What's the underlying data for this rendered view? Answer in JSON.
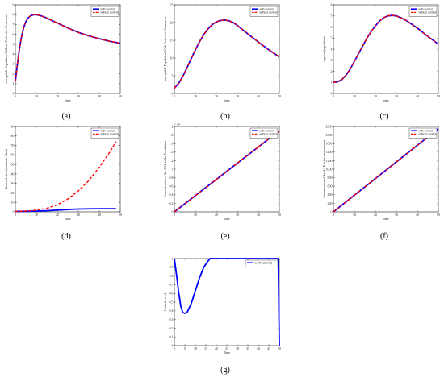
{
  "colors": {
    "with_control": "#0000ff",
    "without_control": "#ff0000",
    "axis": "#222222"
  },
  "chart_data": [
    {
      "id": "a",
      "caption": "(a)",
      "type": "line",
      "xlabel": "time",
      "ylabel": "susceptible Population Without Protective Awareness",
      "xlim": [
        0,
        50
      ],
      "ylim": [
        0,
        9
      ],
      "xticks": [
        0,
        10,
        20,
        30,
        40,
        50
      ],
      "yticks": [
        0,
        1,
        2,
        3,
        4,
        5,
        6,
        7,
        8,
        9
      ],
      "legend": "top-right",
      "x": [
        0,
        1,
        2,
        3,
        4,
        5,
        6,
        7,
        8,
        9,
        10,
        12,
        14,
        16,
        18,
        20,
        25,
        30,
        35,
        40,
        45,
        50
      ],
      "series": [
        {
          "name": "with control",
          "style": "solid",
          "values": [
            1.2,
            3.0,
            4.6,
            5.8,
            6.7,
            7.3,
            7.65,
            7.85,
            7.95,
            8.0,
            8.0,
            7.9,
            7.75,
            7.55,
            7.35,
            7.15,
            6.65,
            6.2,
            5.85,
            5.55,
            5.3,
            5.1
          ]
        },
        {
          "name": "without control",
          "style": "dashed",
          "values": [
            1.2,
            3.0,
            4.6,
            5.8,
            6.7,
            7.3,
            7.65,
            7.85,
            7.95,
            8.0,
            8.0,
            7.9,
            7.75,
            7.55,
            7.35,
            7.15,
            6.65,
            6.2,
            5.85,
            5.55,
            5.3,
            5.1
          ]
        }
      ]
    },
    {
      "id": "b",
      "caption": "(b)",
      "type": "line",
      "xlabel": "time",
      "ylabel": "susceptible Population With Protective Awareness",
      "xlim": [
        0,
        50
      ],
      "ylim": [
        0,
        25
      ],
      "xticks": [
        0,
        10,
        20,
        30,
        40,
        50
      ],
      "yticks": [
        0,
        5,
        10,
        15,
        20,
        25
      ],
      "legend": "top-right",
      "x": [
        0,
        2,
        4,
        6,
        8,
        10,
        12,
        14,
        16,
        18,
        20,
        22,
        24,
        26,
        28,
        30,
        35,
        40,
        45,
        50
      ],
      "series": [
        {
          "name": "with control",
          "style": "solid",
          "values": [
            1.5,
            2.8,
            4.8,
            7.2,
            9.8,
            12.3,
            14.6,
            16.6,
            18.2,
            19.4,
            20.2,
            20.6,
            20.7,
            20.5,
            20.0,
            19.2,
            16.8,
            14.5,
            12.3,
            10.3
          ]
        },
        {
          "name": "without control",
          "style": "dashed",
          "values": [
            1.5,
            2.8,
            4.8,
            7.2,
            9.8,
            12.3,
            14.6,
            16.6,
            18.2,
            19.4,
            20.2,
            20.6,
            20.7,
            20.5,
            20.0,
            19.2,
            16.8,
            14.5,
            12.3,
            10.3
          ]
        }
      ]
    },
    {
      "id": "c",
      "caption": "(c)",
      "type": "line",
      "xlabel": "time",
      "ylabel": "exposed population",
      "xlim": [
        0,
        50
      ],
      "ylim": [
        0,
        8
      ],
      "xticks": [
        0,
        10,
        20,
        30,
        40,
        50
      ],
      "yticks": [
        0,
        1,
        2,
        3,
        4,
        5,
        6,
        7,
        8
      ],
      "legend": "top-right",
      "x": [
        0,
        2,
        4,
        6,
        8,
        10,
        12,
        14,
        16,
        18,
        20,
        22,
        24,
        26,
        28,
        30,
        32,
        35,
        40,
        45,
        50
      ],
      "series": [
        {
          "name": "with control",
          "style": "solid",
          "values": [
            1.0,
            1.05,
            1.25,
            1.65,
            2.2,
            2.9,
            3.6,
            4.3,
            5.0,
            5.6,
            6.1,
            6.55,
            6.85,
            7.0,
            7.05,
            7.0,
            6.85,
            6.55,
            5.9,
            5.15,
            4.45
          ]
        },
        {
          "name": "without control",
          "style": "dashed",
          "values": [
            1.0,
            1.05,
            1.25,
            1.65,
            2.2,
            2.9,
            3.6,
            4.3,
            5.0,
            5.6,
            6.1,
            6.55,
            6.85,
            7.0,
            7.05,
            7.0,
            6.85,
            6.55,
            5.9,
            5.15,
            4.45
          ]
        }
      ]
    },
    {
      "id": "d",
      "caption": "(d)",
      "type": "line",
      "xlabel": "time",
      "ylabel": "diseased class (antibiotic class)",
      "xlim": [
        0,
        50
      ],
      "ylim": [
        0,
        90
      ],
      "xticks": [
        0,
        10,
        20,
        30,
        40,
        50
      ],
      "yticks": [
        0,
        10,
        20,
        30,
        40,
        50,
        60,
        70,
        80,
        90
      ],
      "legend": "top-right",
      "x": [
        0,
        5,
        10,
        15,
        20,
        25,
        30,
        35,
        40,
        45,
        48
      ],
      "series": [
        {
          "name": "with control",
          "style": "solid",
          "values": [
            0.5,
            0.6,
            0.8,
            1.2,
            1.8,
            2.5,
            3.0,
            3.2,
            3.3,
            3.3,
            3.3
          ]
        },
        {
          "name": "without control",
          "style": "dashed",
          "values": [
            0.5,
            0.8,
            1.8,
            3.8,
            7.5,
            13.5,
            22.0,
            33.0,
            47.0,
            63.0,
            74.0
          ]
        }
      ]
    },
    {
      "id": "e",
      "caption": "(e)",
      "type": "line",
      "xlabel": "time",
      "ylabel": "Concentration of the AAP in the Population",
      "xlim": [
        0,
        50
      ],
      "ylim": [
        0,
        2
      ],
      "yexponent": "× 10⁴",
      "xticks": [
        0,
        10,
        20,
        30,
        40,
        50
      ],
      "yticks": [
        0,
        0.2,
        0.4,
        0.6,
        0.8,
        1,
        1.2,
        1.4,
        1.6,
        1.8,
        2
      ],
      "legend": "top-right",
      "x": [
        0,
        50
      ],
      "series": [
        {
          "name": "with control",
          "style": "solid",
          "values": [
            0,
            1.9
          ]
        },
        {
          "name": "without control",
          "style": "dashed",
          "values": [
            0,
            1.9
          ]
        }
      ]
    },
    {
      "id": "f",
      "caption": "(f)",
      "type": "line",
      "xlabel": "time",
      "ylabel": "concentration of the AAP in the environment",
      "xlim": [
        0,
        50
      ],
      "ylim": [
        0,
        2000
      ],
      "xticks": [
        0,
        10,
        20,
        30,
        40,
        50
      ],
      "yticks": [
        0,
        200,
        400,
        600,
        800,
        1000,
        1200,
        1400,
        1600,
        1800,
        2000
      ],
      "legend": "top-right",
      "x": [
        0,
        50
      ],
      "series": [
        {
          "name": "with control",
          "style": "solid",
          "values": [
            0,
            1950
          ]
        },
        {
          "name": "without control",
          "style": "dashed",
          "values": [
            0,
            1950
          ]
        }
      ]
    },
    {
      "id": "g",
      "caption": "(g)",
      "type": "line",
      "xlabel": "Time",
      "ylabel": "Control Level",
      "xlim": [
        0,
        50
      ],
      "ylim": [
        0,
        1
      ],
      "xticks": [
        0,
        5,
        10,
        15,
        20,
        25,
        30,
        35,
        40,
        45,
        50
      ],
      "yticks": [
        0,
        0.1,
        0.2,
        0.3,
        0.4,
        0.5,
        0.6,
        0.7,
        0.8,
        0.9,
        1
      ],
      "legend": "top-right",
      "x": [
        0,
        1,
        2,
        3,
        4,
        5,
        6,
        8,
        10,
        12,
        14,
        16,
        17,
        20,
        30,
        40,
        49,
        49.5,
        50
      ],
      "series": [
        {
          "name": "u₁ (Treatment)",
          "style": "solid",
          "values": [
            1.0,
            0.82,
            0.62,
            0.46,
            0.38,
            0.37,
            0.38,
            0.48,
            0.63,
            0.78,
            0.9,
            0.97,
            1.0,
            1.0,
            1.0,
            1.0,
            1.0,
            1.0,
            0.0
          ]
        }
      ]
    }
  ]
}
